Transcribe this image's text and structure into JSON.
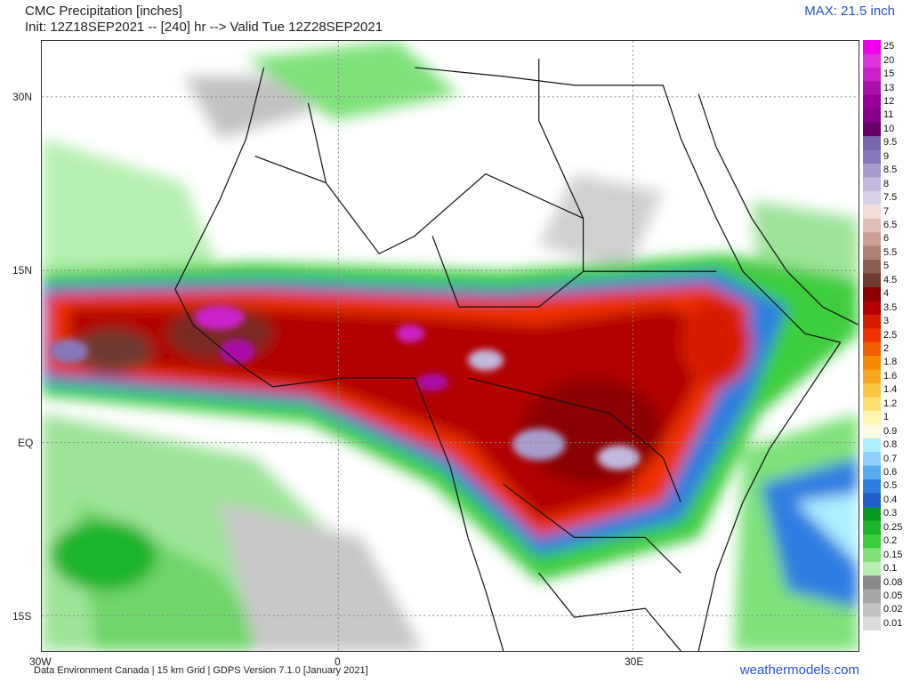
{
  "header": {
    "title_line1": "CMC Precipitation [inches]",
    "title_line2": "Init: 12Z18SEP2021 -- [240] hr --> Valid Tue 12Z28SEP2021",
    "max_label": "MAX: 21.5 inch"
  },
  "axes": {
    "lat_labels": [
      "30N",
      "15N",
      "EQ",
      "15S"
    ],
    "lon_labels": [
      "30W",
      "0",
      "30E"
    ]
  },
  "footer": {
    "credit": "Data Environment Canada | 15 km Grid | GDPS Version 7.1.0 [January 2021]",
    "brand": "weathermodels.com"
  },
  "legend": {
    "levels": [
      "25",
      "20",
      "15",
      "13",
      "12",
      "11",
      "10",
      "9.5",
      "9",
      "8.5",
      "8",
      "7.5",
      "7",
      "6.5",
      "6",
      "5.5",
      "5",
      "4.5",
      "4",
      "3.5",
      "3",
      "2.5",
      "2",
      "1.8",
      "1.6",
      "1.4",
      "1.2",
      "1",
      "0.9",
      "0.8",
      "0.7",
      "0.6",
      "0.5",
      "0.4",
      "0.3",
      "0.25",
      "0.2",
      "0.15",
      "0.1",
      "0.08",
      "0.05",
      "0.02",
      "0.01"
    ],
    "colors": [
      "#ee00ee",
      "#dd33dd",
      "#cc22cc",
      "#aa11aa",
      "#990099",
      "#880088",
      "#660066",
      "#7766aa",
      "#8877bb",
      "#a99ccc",
      "#c2b8dd",
      "#d8d0e8",
      "#f4dcd8",
      "#e0c0b8",
      "#caa096",
      "#b07f74",
      "#8a5e52",
      "#6e3b30",
      "#8b0000",
      "#b30000",
      "#d61e00",
      "#ee3300",
      "#f06000",
      "#f58a00",
      "#f8a820",
      "#fbc640",
      "#fde070",
      "#fff4b0",
      "#fffce0",
      "#aeeeff",
      "#8ed0ff",
      "#5aaaf0",
      "#2f7de0",
      "#1e5ec8",
      "#089a1a",
      "#1cb42a",
      "#3ccd3c",
      "#7ee17a",
      "#b6f0b0",
      "#8a8a8a",
      "#a6a6a6",
      "#c2c2c2",
      "#dcdcdc"
    ]
  }
}
